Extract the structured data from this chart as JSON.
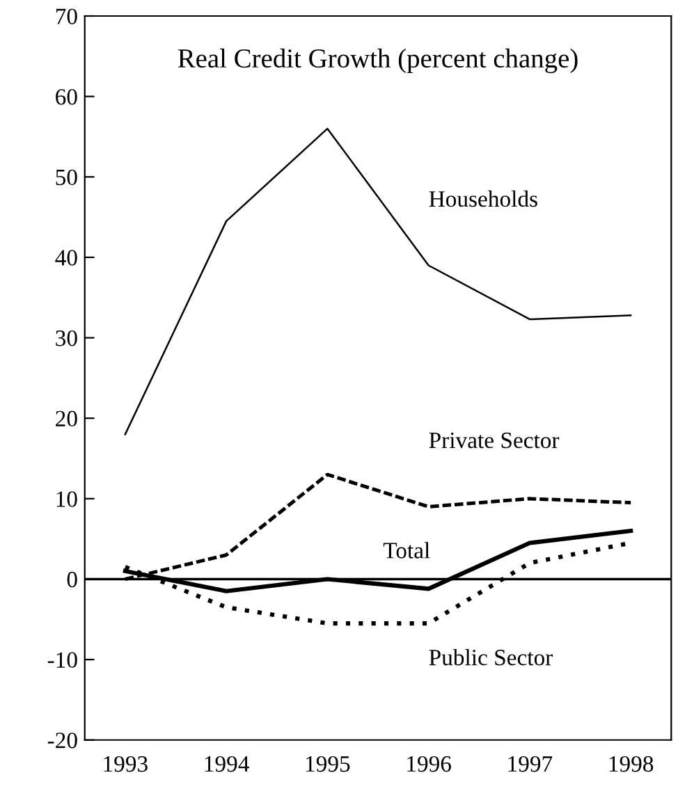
{
  "chart_data": {
    "type": "line",
    "title": "Real Credit Growth (percent change)",
    "categories": [
      "1993",
      "1994",
      "1995",
      "1996",
      "1997",
      "1998"
    ],
    "series": [
      {
        "name": "Households",
        "color": "#000000",
        "line_style": "solid",
        "values": [
          18,
          44.5,
          56,
          39,
          32.3,
          32.8
        ]
      },
      {
        "name": "Private Sector",
        "color": "#000000",
        "line_style": "dashed",
        "values": [
          0,
          3,
          13,
          9,
          10,
          9.5
        ]
      },
      {
        "name": "Total",
        "color": "#000000",
        "line_style": "solid",
        "values": [
          1,
          -1.5,
          0,
          -1.2,
          4.5,
          6
        ]
      },
      {
        "name": "Public Sector",
        "color": "#000000",
        "line_style": "dotted",
        "values": [
          1.5,
          -3.5,
          -5.5,
          -5.5,
          2,
          4.5
        ]
      }
    ],
    "ylim": [
      -20,
      70
    ],
    "yticks": [
      -20,
      -10,
      0,
      10,
      20,
      30,
      40,
      50,
      60,
      70
    ],
    "ref_lines": [
      {
        "axis": "y",
        "value": 0,
        "color": "#000000"
      }
    ],
    "grid": false,
    "legend": false,
    "marker": "none"
  }
}
